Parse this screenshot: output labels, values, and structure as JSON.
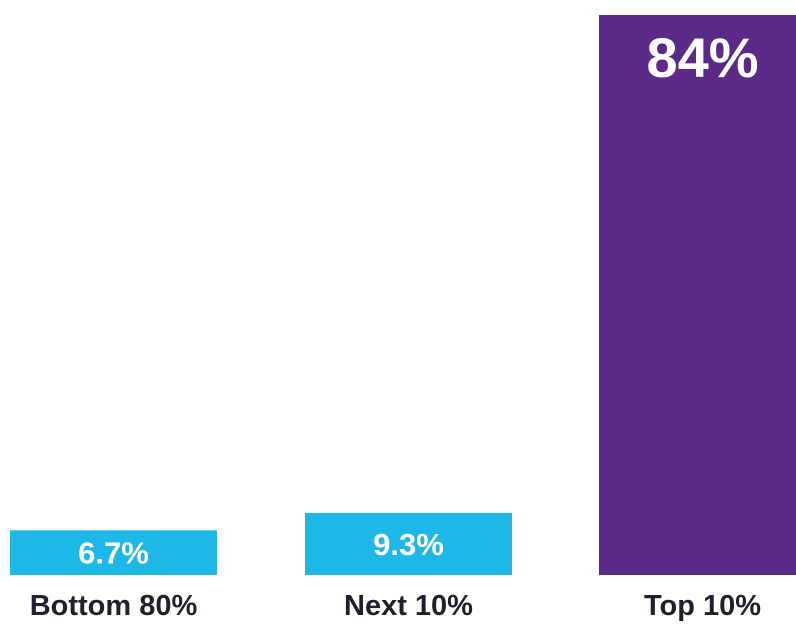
{
  "chart_data": {
    "type": "bar",
    "categories": [
      "Bottom 80%",
      "Next 10%",
      "Top 10%"
    ],
    "values": [
      6.7,
      9.3,
      84
    ],
    "value_labels": [
      "6.7%",
      "9.3%",
      "84%"
    ],
    "colors": [
      "#1EB7E8",
      "#1EB7E8",
      "#5B2A86"
    ],
    "ylim": [
      0,
      84
    ],
    "grid": false,
    "legend": "none"
  }
}
